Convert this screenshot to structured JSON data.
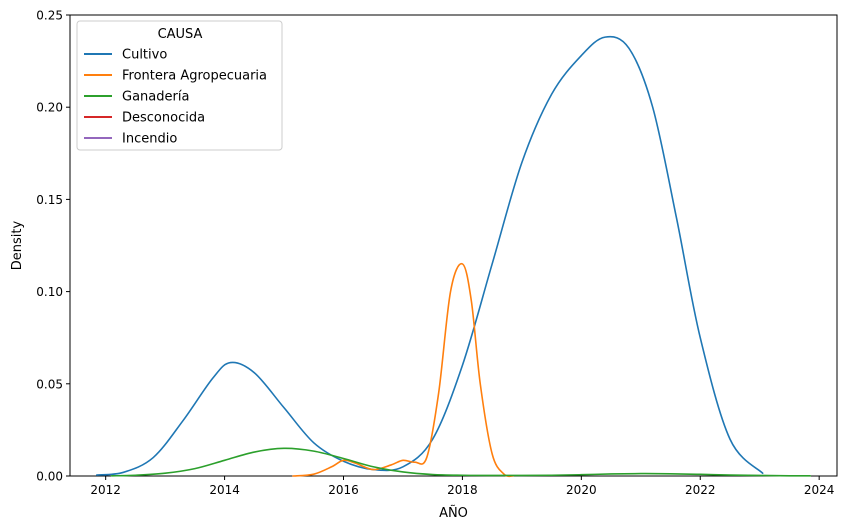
{
  "chart_data": {
    "type": "line",
    "title": "",
    "xlabel": "AÑO",
    "ylabel": "Density",
    "xlim": [
      2011.4,
      2024.3
    ],
    "ylim": [
      0,
      0.25
    ],
    "xticks": [
      2012,
      2014,
      2016,
      2018,
      2020,
      2022,
      2024
    ],
    "xtick_labels": [
      "2012",
      "2014",
      "2016",
      "2018",
      "2020",
      "2022",
      "2024"
    ],
    "yticks": [
      0,
      0.05,
      0.1,
      0.15,
      0.2,
      0.25
    ],
    "ytick_labels": [
      "0.00",
      "0.05",
      "0.10",
      "0.15",
      "0.20",
      "0.25"
    ],
    "grid": false,
    "legend": {
      "title": "CAUSA",
      "placement": "top-left"
    },
    "series": [
      {
        "name": "Cultivo",
        "color": "#1f77b4",
        "x": [
          2011.85,
          2012.3,
          2012.8,
          2013.3,
          2013.8,
          2014.1,
          2014.5,
          2015.0,
          2015.5,
          2016.0,
          2016.5,
          2017.0,
          2017.5,
          2018.0,
          2018.5,
          2019.0,
          2019.5,
          2020.0,
          2020.4,
          2020.8,
          2021.2,
          2021.6,
          2022.0,
          2022.5,
          2023.05
        ],
        "y": [
          0.0005,
          0.002,
          0.01,
          0.03,
          0.053,
          0.0615,
          0.056,
          0.037,
          0.018,
          0.008,
          0.0035,
          0.005,
          0.02,
          0.06,
          0.115,
          0.17,
          0.207,
          0.228,
          0.238,
          0.232,
          0.2,
          0.14,
          0.075,
          0.02,
          0.0015
        ]
      },
      {
        "name": "Frontera Agropecuaria",
        "color": "#ff7f0e",
        "x": [
          2015.15,
          2015.5,
          2015.8,
          2016.0,
          2016.2,
          2016.5,
          2016.8,
          2017.0,
          2017.2,
          2017.4,
          2017.6,
          2017.8,
          2018.0,
          2018.15,
          2018.3,
          2018.5,
          2018.7,
          2018.85
        ],
        "y": [
          0.0,
          0.001,
          0.005,
          0.0085,
          0.007,
          0.0035,
          0.006,
          0.0085,
          0.0075,
          0.01,
          0.045,
          0.1,
          0.115,
          0.095,
          0.05,
          0.012,
          0.001,
          0.0
        ]
      },
      {
        "name": "Ganadería",
        "color": "#2ca02c",
        "x": [
          2012.1,
          2012.5,
          2013.0,
          2013.5,
          2014.0,
          2014.5,
          2015.0,
          2015.5,
          2016.0,
          2016.5,
          2017.0,
          2017.5,
          2018.0,
          2018.5,
          2019.0,
          2019.5,
          2020.0,
          2020.5,
          2021.0,
          2021.5,
          2022.0,
          2022.5,
          2023.0,
          2023.5,
          2023.85
        ],
        "y": [
          0.0001,
          0.0004,
          0.0015,
          0.004,
          0.0085,
          0.013,
          0.015,
          0.0135,
          0.0095,
          0.005,
          0.0022,
          0.0008,
          0.0004,
          0.0003,
          0.0003,
          0.0004,
          0.0007,
          0.0011,
          0.0013,
          0.0012,
          0.0009,
          0.0005,
          0.0003,
          0.0001,
          0.0001
        ]
      },
      {
        "name": "Desconocida",
        "color": "#d62728",
        "x": [],
        "y": []
      },
      {
        "name": "Incendio",
        "color": "#9467bd",
        "x": [],
        "y": []
      }
    ]
  }
}
